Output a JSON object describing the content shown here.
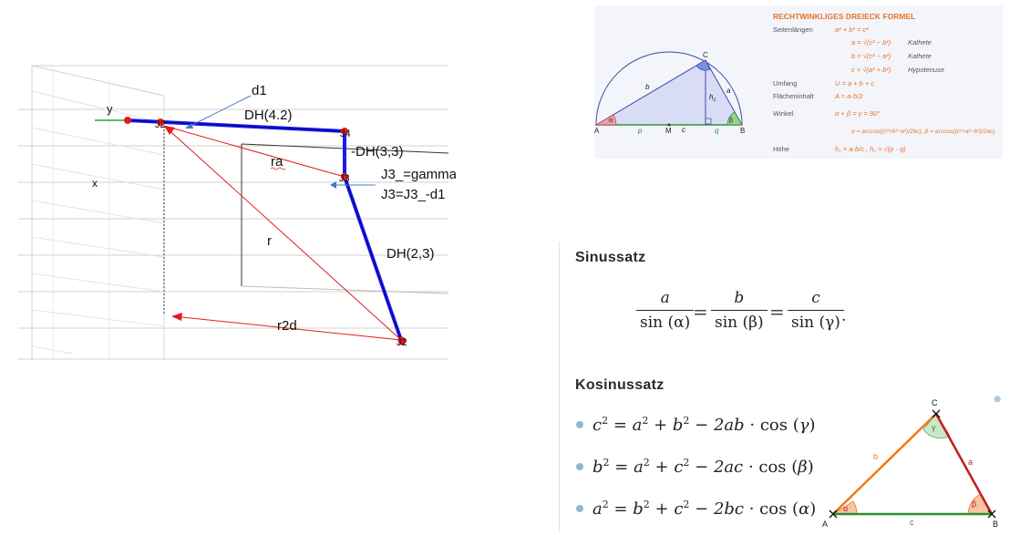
{
  "robot_sketch": {
    "axis_y": "y",
    "axis_x": "x",
    "joint_start": "2",
    "joint_start_overlap": "J2",
    "d1": "d1",
    "dh_top": "DH(4.2)",
    "j4": "J4",
    "dh_mid": "-DH(3,3)",
    "ra": "ra",
    "j3": "J3",
    "j3_note_1": "J3_=gamma",
    "j3_note_2": "J3=J3_-d1",
    "r": "r",
    "dh_low": "DH(2,3)",
    "r2d": "r2d",
    "bottom_joint": "J2"
  },
  "formula_card": {
    "title": "RECHTWINKLIGES DREIECK FORMEL",
    "rows": [
      {
        "label": "Seitenlängen",
        "formula": "a² + b² = c²",
        "note": ""
      },
      {
        "label": "",
        "formula": "a = √(c² − b²)",
        "note": "Kathete"
      },
      {
        "label": "",
        "formula": "b = √(c² − a²)",
        "note": "Kathete"
      },
      {
        "label": "",
        "formula": "c = √(a² + b²)",
        "note": "Hypotenuse"
      },
      {
        "label": "Umfang",
        "formula": "U = a + b + c",
        "note": ""
      },
      {
        "label": "Flächeninhalt",
        "formula": "A = a·b/2",
        "note": ""
      },
      {
        "label": "Winkel",
        "formula": "α + β = γ = 90°",
        "note": ""
      },
      {
        "label": "",
        "formula": "α = arccos((c²+b²−a²)/2bc), β = arccos((c²+a²−b²)/2ac)",
        "note": ""
      },
      {
        "label": "Höhe",
        "formula": "h꜀ = a·b/c , h꜀ = √(p · q)",
        "note": ""
      }
    ],
    "triangle_labels": {
      "A": "A",
      "B": "B",
      "C": "C",
      "M": "M",
      "a": "a",
      "b": "b",
      "c": "c",
      "hc": "h",
      "hc_sub": "c",
      "p": "p",
      "q": "q",
      "alpha": "α",
      "beta": "β"
    }
  },
  "sinussatz": {
    "heading": "Sinussatz",
    "fractions": [
      {
        "num": "a",
        "den": "sin (α)"
      },
      {
        "num": "b",
        "den": "sin (β)"
      },
      {
        "num": "c",
        "den": "sin (γ)"
      }
    ],
    "period": "."
  },
  "kosinussatz": {
    "heading": "Kosinussatz",
    "formulas": [
      {
        "lhs": "c",
        "v1": "a",
        "v2": "b",
        "term": "2ab",
        "angle": "γ"
      },
      {
        "lhs": "b",
        "v1": "a",
        "v2": "c",
        "term": "2ac",
        "angle": "β"
      },
      {
        "lhs": "a",
        "v1": "b",
        "v2": "c",
        "term": "2bc",
        "angle": "α"
      }
    ],
    "triangle_labels": {
      "A": "A",
      "B": "B",
      "C": "C",
      "a": "a",
      "b": "b",
      "c": "c",
      "alpha": "α",
      "beta": "β",
      "gamma": "γ"
    }
  },
  "colors": {
    "arm": "#1a1aee",
    "red": "#e41b1b",
    "orange": "#ee7a14",
    "green": "#2a8f2a",
    "card_accent": "#e8732a"
  }
}
